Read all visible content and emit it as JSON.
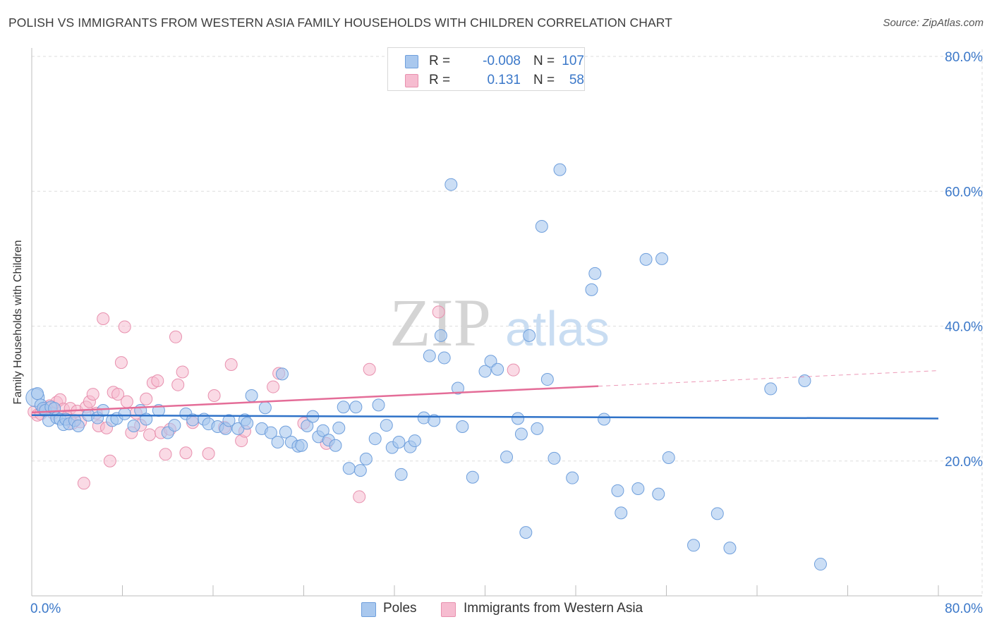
{
  "title": "POLISH VS IMMIGRANTS FROM WESTERN ASIA FAMILY HOUSEHOLDS WITH CHILDREN CORRELATION CHART",
  "source": "Source: ZipAtlas.com",
  "watermark": {
    "zip": "ZIP",
    "atlas": "atlas"
  },
  "colors": {
    "poles_fill": "#a9c8ee",
    "poles_stroke": "#6f9fdc",
    "poles_line": "#2f72c8",
    "wa_fill": "#f6bcd0",
    "wa_stroke": "#e890ae",
    "wa_line": "#e46d98",
    "grid": "#dedede",
    "tick_label": "#3b78c9"
  },
  "legend_top": {
    "rows": [
      {
        "r_label": "R =",
        "r_value": "-0.008",
        "n_label": "N =",
        "n_value": "107"
      },
      {
        "r_label": "R =",
        "r_value": "0.131",
        "n_label": "N =",
        "n_value": "58"
      }
    ]
  },
  "legend_bottom": {
    "poles": "Poles",
    "wa": "Immigrants from Western Asia"
  },
  "chart_data": {
    "type": "scatter",
    "title": "POLISH VS IMMIGRANTS FROM WESTERN ASIA FAMILY HOUSEHOLDS WITH CHILDREN CORRELATION CHART",
    "xlabel": "",
    "ylabel": "Family Households with Children",
    "xlim": [
      0,
      80
    ],
    "ylim": [
      0,
      80
    ],
    "x_tick_labels": {
      "left": "0.0%",
      "right": "80.0%"
    },
    "y_ticks": [
      {
        "value": 20,
        "label": "20.0%"
      },
      {
        "value": 40,
        "label": "40.0%"
      },
      {
        "value": 60,
        "label": "60.0%"
      },
      {
        "value": 80,
        "label": "80.0%"
      }
    ],
    "series": [
      {
        "name": "Poles",
        "r": -0.008,
        "n": 107,
        "trend": {
          "x0": 0,
          "y0": 26.8,
          "x1": 80,
          "y1": 26.3
        },
        "points": [
          [
            0.3,
            29.4
          ],
          [
            0.5,
            30.0
          ],
          [
            0.8,
            28.3
          ],
          [
            1.0,
            27.8
          ],
          [
            1.2,
            27.5
          ],
          [
            1.5,
            26.0
          ],
          [
            1.7,
            28.0
          ],
          [
            2.0,
            27.8
          ],
          [
            2.2,
            26.4
          ],
          [
            2.5,
            26.2
          ],
          [
            2.8,
            25.4
          ],
          [
            3.0,
            26.2
          ],
          [
            3.3,
            25.5
          ],
          [
            3.8,
            26.0
          ],
          [
            4.1,
            25.2
          ],
          [
            5.0,
            26.8
          ],
          [
            5.8,
            26.4
          ],
          [
            6.3,
            27.5
          ],
          [
            7.1,
            26.0
          ],
          [
            7.5,
            26.3
          ],
          [
            8.2,
            27.0
          ],
          [
            9.0,
            25.2
          ],
          [
            9.6,
            27.5
          ],
          [
            10.1,
            26.2
          ],
          [
            11.2,
            27.5
          ],
          [
            12.0,
            24.2
          ],
          [
            12.6,
            25.3
          ],
          [
            13.6,
            27.0
          ],
          [
            14.2,
            26.1
          ],
          [
            15.2,
            26.2
          ],
          [
            15.6,
            25.5
          ],
          [
            16.4,
            25.1
          ],
          [
            17.1,
            24.8
          ],
          [
            17.4,
            26.0
          ],
          [
            18.2,
            24.8
          ],
          [
            18.8,
            26.1
          ],
          [
            19.0,
            25.6
          ],
          [
            19.4,
            29.7
          ],
          [
            20.3,
            24.8
          ],
          [
            20.6,
            27.9
          ],
          [
            21.1,
            24.2
          ],
          [
            21.7,
            22.8
          ],
          [
            22.1,
            32.9
          ],
          [
            22.4,
            24.3
          ],
          [
            22.9,
            22.8
          ],
          [
            23.5,
            22.2
          ],
          [
            23.8,
            22.3
          ],
          [
            24.3,
            25.2
          ],
          [
            24.8,
            26.6
          ],
          [
            25.3,
            23.6
          ],
          [
            25.7,
            24.5
          ],
          [
            26.2,
            23.1
          ],
          [
            26.8,
            22.3
          ],
          [
            27.1,
            24.9
          ],
          [
            27.5,
            28.0
          ],
          [
            28.0,
            18.9
          ],
          [
            28.6,
            28.0
          ],
          [
            29.0,
            18.6
          ],
          [
            29.5,
            20.3
          ],
          [
            30.3,
            23.3
          ],
          [
            30.6,
            28.3
          ],
          [
            31.3,
            25.3
          ],
          [
            31.8,
            22.0
          ],
          [
            32.4,
            22.8
          ],
          [
            32.6,
            18.0
          ],
          [
            33.4,
            22.1
          ],
          [
            33.8,
            23.0
          ],
          [
            34.6,
            26.4
          ],
          [
            35.1,
            35.6
          ],
          [
            35.5,
            26.0
          ],
          [
            36.1,
            38.6
          ],
          [
            36.4,
            35.3
          ],
          [
            37.0,
            61.0
          ],
          [
            37.6,
            30.8
          ],
          [
            38.0,
            25.1
          ],
          [
            38.9,
            17.6
          ],
          [
            40.0,
            33.3
          ],
          [
            40.5,
            34.8
          ],
          [
            41.1,
            33.6
          ],
          [
            41.9,
            20.6
          ],
          [
            42.9,
            26.3
          ],
          [
            43.2,
            24.0
          ],
          [
            43.6,
            9.4
          ],
          [
            43.9,
            38.6
          ],
          [
            44.6,
            24.8
          ],
          [
            45.0,
            54.8
          ],
          [
            45.5,
            32.1
          ],
          [
            46.1,
            20.4
          ],
          [
            46.6,
            63.2
          ],
          [
            47.7,
            17.5
          ],
          [
            49.4,
            45.4
          ],
          [
            49.7,
            47.8
          ],
          [
            50.5,
            26.2
          ],
          [
            51.7,
            15.6
          ],
          [
            52.0,
            12.3
          ],
          [
            53.5,
            15.9
          ],
          [
            54.2,
            49.9
          ],
          [
            55.3,
            15.1
          ],
          [
            55.6,
            50.0
          ],
          [
            56.2,
            20.5
          ],
          [
            58.4,
            7.5
          ],
          [
            60.5,
            12.2
          ],
          [
            61.6,
            7.1
          ],
          [
            65.2,
            30.7
          ],
          [
            68.2,
            31.9
          ],
          [
            69.6,
            4.7
          ]
        ]
      },
      {
        "name": "Immigrants from Western Asia",
        "r": 0.131,
        "n": 58,
        "trend": {
          "x0": 0,
          "y0": 27.2,
          "x1": 50,
          "y1": 31.1,
          "dashed_to_x": 80,
          "dashed_to_y": 33.4
        },
        "points": [
          [
            0.2,
            27.3
          ],
          [
            0.5,
            26.8
          ],
          [
            0.8,
            27.0
          ],
          [
            1.1,
            27.5
          ],
          [
            1.3,
            27.9
          ],
          [
            1.6,
            28.2
          ],
          [
            1.9,
            27.1
          ],
          [
            2.2,
            28.7
          ],
          [
            2.5,
            29.1
          ],
          [
            2.8,
            27.7
          ],
          [
            3.1,
            26.5
          ],
          [
            3.4,
            27.8
          ],
          [
            3.6,
            25.6
          ],
          [
            4.0,
            27.4
          ],
          [
            4.3,
            25.8
          ],
          [
            4.6,
            16.7
          ],
          [
            4.8,
            28.0
          ],
          [
            5.1,
            28.8
          ],
          [
            5.4,
            29.9
          ],
          [
            5.7,
            27.1
          ],
          [
            5.9,
            25.2
          ],
          [
            6.3,
            41.1
          ],
          [
            6.6,
            24.9
          ],
          [
            6.9,
            20.0
          ],
          [
            7.2,
            30.2
          ],
          [
            7.6,
            29.9
          ],
          [
            7.9,
            34.6
          ],
          [
            8.2,
            39.9
          ],
          [
            8.4,
            28.8
          ],
          [
            8.8,
            24.2
          ],
          [
            9.2,
            27.1
          ],
          [
            9.6,
            25.3
          ],
          [
            10.1,
            29.2
          ],
          [
            10.4,
            23.9
          ],
          [
            10.7,
            31.6
          ],
          [
            11.1,
            31.9
          ],
          [
            11.4,
            24.2
          ],
          [
            11.8,
            21.0
          ],
          [
            12.2,
            24.7
          ],
          [
            12.7,
            38.4
          ],
          [
            12.9,
            31.3
          ],
          [
            13.3,
            33.2
          ],
          [
            13.6,
            21.2
          ],
          [
            14.2,
            25.7
          ],
          [
            15.6,
            21.1
          ],
          [
            16.1,
            29.7
          ],
          [
            17.0,
            25.0
          ],
          [
            17.6,
            34.3
          ],
          [
            18.5,
            23.0
          ],
          [
            18.8,
            24.4
          ],
          [
            21.3,
            31.0
          ],
          [
            21.8,
            33.0
          ],
          [
            24.0,
            25.6
          ],
          [
            26.0,
            22.6
          ],
          [
            28.9,
            14.7
          ],
          [
            29.8,
            33.6
          ],
          [
            35.9,
            42.1
          ],
          [
            42.5,
            33.5
          ]
        ]
      }
    ]
  }
}
